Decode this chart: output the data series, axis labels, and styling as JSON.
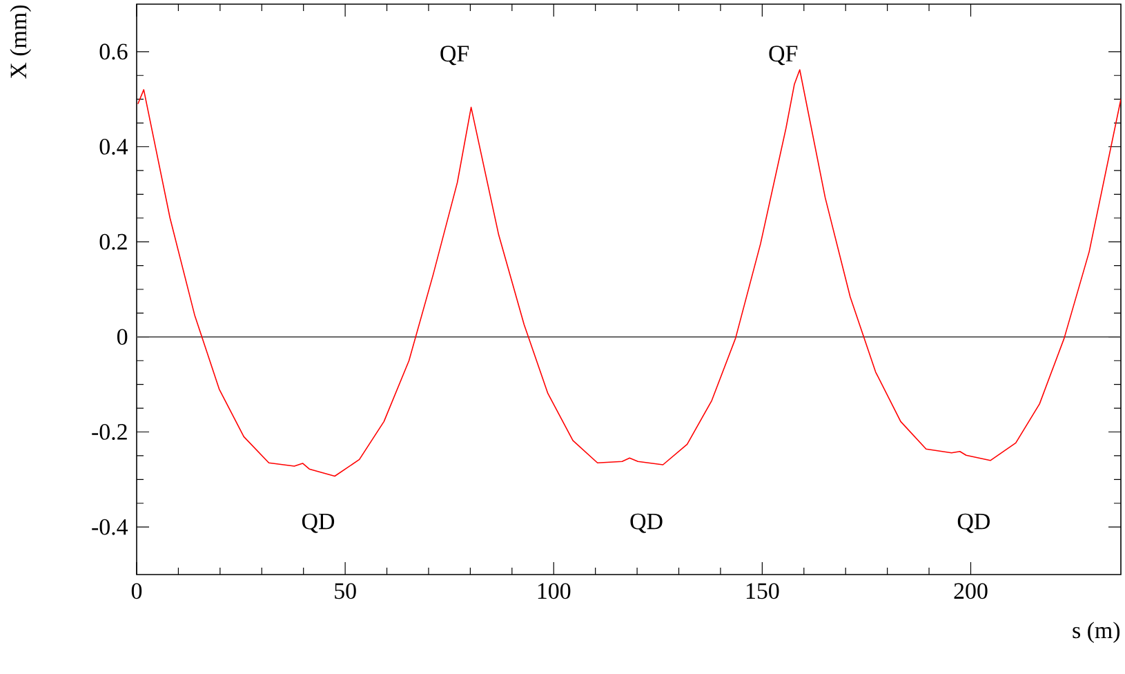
{
  "chart_data": {
    "type": "line",
    "xlabel": "s (m)",
    "ylabel": "X (mm)",
    "xlim": [
      0,
      236
    ],
    "ylim": [
      -0.5,
      0.7
    ],
    "xticks": [
      0,
      50,
      100,
      150,
      200
    ],
    "yticks": [
      -0.4,
      -0.2,
      0,
      0.2,
      0.4,
      0.6
    ],
    "grid": false,
    "marker": "none",
    "line_style": "solid",
    "ref_lines": [
      {
        "axis": "y",
        "value": 0,
        "color": "#555555"
      }
    ],
    "annotations": [
      "QF",
      "QF",
      "QD",
      "QD",
      "QD"
    ],
    "series": [
      {
        "color": "#ff0000",
        "x": [
          0.3,
          1.7,
          8.0,
          13.9,
          19.8,
          25.7,
          31.7,
          37.8,
          39.8,
          41.4,
          47.5,
          53.4,
          59.3,
          65.3,
          71.1,
          76.9,
          80.2,
          86.8,
          92.9,
          98.6,
          104.6,
          110.5,
          116.4,
          118.2,
          120.2,
          126.2,
          132.0,
          137.9,
          143.6,
          149.6,
          155.7,
          157.7,
          159.0,
          165.1,
          171.1,
          177.2,
          183.2,
          189.3,
          195.4,
          197.4,
          198.9,
          204.7,
          210.8,
          216.5,
          222.4,
          228.4,
          236
        ],
        "values": [
          0.49,
          0.52,
          0.25,
          0.046,
          -0.11,
          -0.21,
          -0.265,
          -0.272,
          -0.266,
          -0.278,
          -0.293,
          -0.258,
          -0.178,
          -0.05,
          0.131,
          0.325,
          0.483,
          0.215,
          0.026,
          -0.119,
          -0.218,
          -0.265,
          -0.262,
          -0.255,
          -0.262,
          -0.269,
          -0.226,
          -0.134,
          -0.003,
          0.196,
          0.439,
          0.531,
          0.562,
          0.293,
          0.084,
          -0.074,
          -0.178,
          -0.236,
          -0.244,
          -0.241,
          -0.249,
          -0.26,
          -0.223,
          -0.141,
          -0.003,
          0.179,
          0.5
        ]
      }
    ]
  }
}
